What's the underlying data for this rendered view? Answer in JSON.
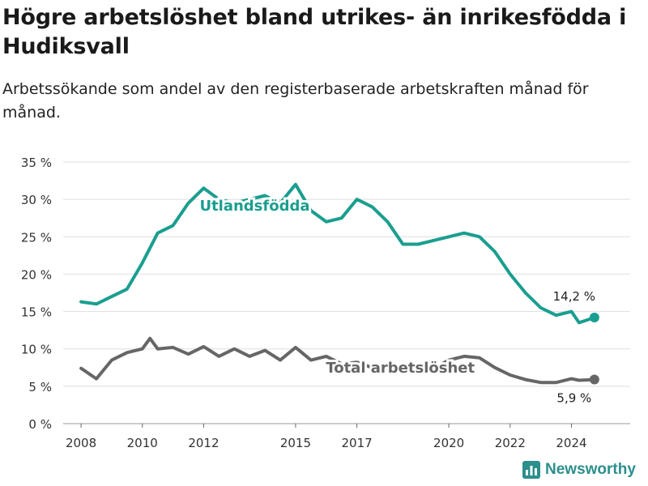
{
  "header": {
    "title": "Högre arbetslöshet bland utrikes- än inrikesfödda i Hudiksvall",
    "subtitle": "Arbetssökande som andel av den registerbaserade arbetskraften månad för månad."
  },
  "brand": {
    "name": "Newsworthy",
    "color": "#2b8f8c"
  },
  "chart_data": {
    "type": "line",
    "title": "Högre arbetslöshet bland utrikes- än inrikesfödda i Hudiksvall",
    "subtitle": "Arbetssökande som andel av den registerbaserade arbetskraften månad för månad.",
    "x_ticks": [
      "2008",
      "2010",
      "2012",
      "2015",
      "2017",
      "2020",
      "2022",
      "2024"
    ],
    "y_ticks": [
      "0 %",
      "5 %",
      "10 %",
      "15 %",
      "20 %",
      "25 %",
      "30 %",
      "35 %"
    ],
    "xlim": [
      "2007-06",
      "2025-12"
    ],
    "ylim": [
      0,
      35
    ],
    "grid": true,
    "series": [
      {
        "name": "Utlandsfödda",
        "color": "#1a9e8f",
        "end_label": "14,2 %",
        "points": [
          [
            "2008-01",
            16.3
          ],
          [
            "2008-07",
            16.0
          ],
          [
            "2009-01",
            17.0
          ],
          [
            "2009-07",
            18.0
          ],
          [
            "2010-01",
            21.5
          ],
          [
            "2010-07",
            25.5
          ],
          [
            "2011-01",
            26.5
          ],
          [
            "2011-07",
            29.5
          ],
          [
            "2012-01",
            31.5
          ],
          [
            "2012-07",
            30.0
          ],
          [
            "2013-01",
            29.5
          ],
          [
            "2013-07",
            30.0
          ],
          [
            "2014-01",
            30.5
          ],
          [
            "2014-07",
            29.5
          ],
          [
            "2015-01",
            32.0
          ],
          [
            "2015-07",
            28.5
          ],
          [
            "2016-01",
            27.0
          ],
          [
            "2016-07",
            27.5
          ],
          [
            "2017-01",
            30.0
          ],
          [
            "2017-07",
            29.0
          ],
          [
            "2018-01",
            27.0
          ],
          [
            "2018-07",
            24.0
          ],
          [
            "2019-01",
            24.0
          ],
          [
            "2019-07",
            24.5
          ],
          [
            "2020-01",
            25.0
          ],
          [
            "2020-07",
            25.5
          ],
          [
            "2021-01",
            25.0
          ],
          [
            "2021-07",
            23.0
          ],
          [
            "2022-01",
            20.0
          ],
          [
            "2022-07",
            17.5
          ],
          [
            "2023-01",
            15.5
          ],
          [
            "2023-07",
            14.5
          ],
          [
            "2024-01",
            15.0
          ],
          [
            "2024-04",
            13.5
          ],
          [
            "2024-10",
            14.2
          ]
        ]
      },
      {
        "name": "Total arbetslöshet",
        "color": "#666666",
        "end_label": "5,9 %",
        "points": [
          [
            "2008-01",
            7.4
          ],
          [
            "2008-07",
            6.0
          ],
          [
            "2009-01",
            8.5
          ],
          [
            "2009-07",
            9.5
          ],
          [
            "2010-01",
            10.0
          ],
          [
            "2010-04",
            11.4
          ],
          [
            "2010-07",
            10.0
          ],
          [
            "2011-01",
            10.2
          ],
          [
            "2011-07",
            9.3
          ],
          [
            "2012-01",
            10.3
          ],
          [
            "2012-07",
            9.0
          ],
          [
            "2013-01",
            10.0
          ],
          [
            "2013-07",
            9.0
          ],
          [
            "2014-01",
            9.8
          ],
          [
            "2014-07",
            8.5
          ],
          [
            "2015-01",
            10.2
          ],
          [
            "2015-07",
            8.5
          ],
          [
            "2016-01",
            9.0
          ],
          [
            "2016-07",
            8.0
          ],
          [
            "2017-01",
            8.2
          ],
          [
            "2017-07",
            7.5
          ],
          [
            "2018-01",
            7.8
          ],
          [
            "2018-07",
            7.6
          ],
          [
            "2019-01",
            7.6
          ],
          [
            "2019-07",
            7.4
          ],
          [
            "2020-01",
            8.5
          ],
          [
            "2020-07",
            9.0
          ],
          [
            "2021-01",
            8.8
          ],
          [
            "2021-07",
            7.5
          ],
          [
            "2022-01",
            6.5
          ],
          [
            "2022-07",
            5.9
          ],
          [
            "2023-01",
            5.5
          ],
          [
            "2023-07",
            5.5
          ],
          [
            "2024-01",
            6.0
          ],
          [
            "2024-04",
            5.8
          ],
          [
            "2024-10",
            5.9
          ]
        ]
      }
    ]
  }
}
